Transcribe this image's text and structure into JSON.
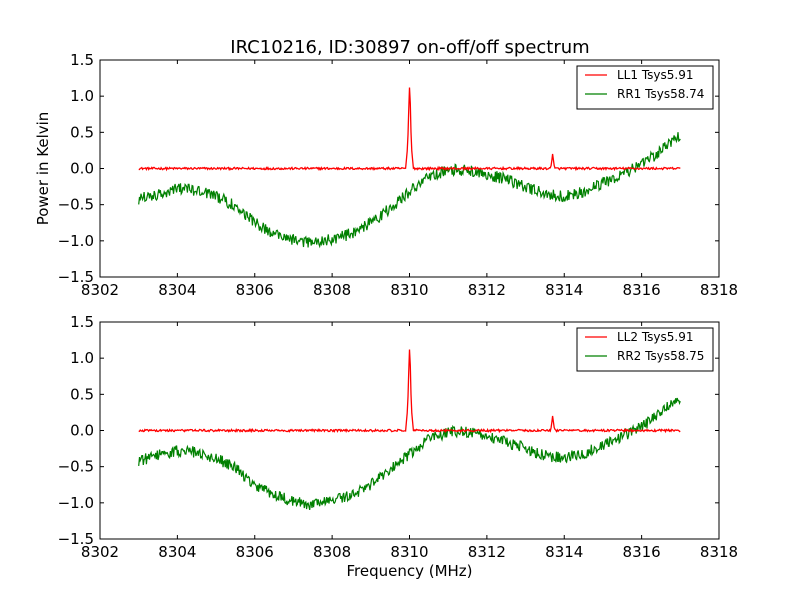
{
  "figure": {
    "title": "IRC10216, ID:30897 on-off/off spectrum"
  },
  "colors": {
    "ll": "#ff0000",
    "rr": "#008000",
    "axes": "#000000",
    "background": "#ffffff"
  },
  "chart_data": [
    {
      "type": "line",
      "title": "IRC10216, ID:30897 on-off/off spectrum",
      "xlabel": "",
      "ylabel": "Power in Kelvin",
      "xlim": [
        8302,
        8318
      ],
      "ylim": [
        -1.5,
        1.5
      ],
      "xticks": [
        "8302",
        "8304",
        "8306",
        "8308",
        "8310",
        "8312",
        "8314",
        "8316",
        "8318"
      ],
      "yticks": [
        "−1.5",
        "−1.0",
        "−0.5",
        "0.0",
        "0.5",
        "1.0",
        "1.5"
      ],
      "grid": false,
      "legend": "top-right",
      "series": [
        {
          "name": "LL1 Tsys5.91",
          "color": "#ff0000",
          "x": [
            8303.0,
            8305.0,
            8307.0,
            8309.0,
            8309.9,
            8309.95,
            8310.0,
            8310.02,
            8310.05,
            8310.1,
            8311.0,
            8312.0,
            8313.0,
            8313.65,
            8313.7,
            8313.75,
            8314.0,
            8315.0,
            8316.0,
            8317.0
          ],
          "y": [
            0.0,
            0.0,
            0.0,
            0.0,
            0.0,
            0.3,
            1.12,
            0.9,
            0.3,
            0.0,
            0.0,
            0.0,
            0.0,
            0.0,
            0.2,
            0.0,
            0.0,
            0.0,
            0.0,
            0.0
          ]
        },
        {
          "name": "RR1 Tsys58.74",
          "color": "#008000",
          "x": [
            8303.0,
            8303.5,
            8304.0,
            8304.5,
            8305.0,
            8305.5,
            8306.0,
            8306.5,
            8307.0,
            8307.5,
            8308.0,
            8308.5,
            8309.0,
            8309.5,
            8310.0,
            8310.5,
            8311.0,
            8311.5,
            8312.0,
            8312.5,
            8313.0,
            8313.5,
            8314.0,
            8314.5,
            8315.0,
            8315.5,
            8316.0,
            8316.5,
            8317.0
          ],
          "y": [
            -0.42,
            -0.35,
            -0.28,
            -0.3,
            -0.38,
            -0.52,
            -0.75,
            -0.9,
            -0.98,
            -1.03,
            -0.98,
            -0.9,
            -0.75,
            -0.55,
            -0.32,
            -0.12,
            -0.02,
            -0.02,
            -0.08,
            -0.15,
            -0.25,
            -0.35,
            -0.38,
            -0.32,
            -0.2,
            -0.08,
            0.05,
            0.25,
            0.45
          ]
        }
      ]
    },
    {
      "type": "line",
      "title": "",
      "xlabel": "Frequency (MHz)",
      "ylabel": "",
      "xlim": [
        8302,
        8318
      ],
      "ylim": [
        -1.5,
        1.5
      ],
      "xticks": [
        "8302",
        "8304",
        "8306",
        "8308",
        "8310",
        "8312",
        "8314",
        "8316",
        "8318"
      ],
      "yticks": [
        "−1.5",
        "−1.0",
        "−0.5",
        "0.0",
        "0.5",
        "1.0",
        "1.5"
      ],
      "grid": false,
      "legend": "top-right",
      "series": [
        {
          "name": "LL2 Tsys5.91",
          "color": "#ff0000",
          "x": [
            8303.0,
            8305.0,
            8307.0,
            8309.0,
            8309.9,
            8309.95,
            8310.0,
            8310.02,
            8310.05,
            8310.1,
            8311.0,
            8312.0,
            8313.0,
            8313.65,
            8313.7,
            8313.75,
            8314.0,
            8315.0,
            8316.0,
            8317.0
          ],
          "y": [
            0.0,
            0.0,
            0.0,
            0.0,
            0.0,
            0.3,
            1.12,
            0.9,
            0.3,
            0.0,
            0.0,
            0.0,
            0.0,
            0.0,
            0.2,
            0.0,
            0.0,
            0.0,
            0.0,
            0.0
          ]
        },
        {
          "name": "RR2 Tsys58.75",
          "color": "#008000",
          "x": [
            8303.0,
            8303.5,
            8304.0,
            8304.5,
            8305.0,
            8305.5,
            8306.0,
            8306.5,
            8307.0,
            8307.5,
            8308.0,
            8308.5,
            8309.0,
            8309.5,
            8310.0,
            8310.5,
            8311.0,
            8311.5,
            8312.0,
            8312.5,
            8313.0,
            8313.5,
            8314.0,
            8314.5,
            8315.0,
            8315.5,
            8316.0,
            8316.5,
            8317.0
          ],
          "y": [
            -0.42,
            -0.35,
            -0.28,
            -0.3,
            -0.38,
            -0.52,
            -0.75,
            -0.9,
            -0.98,
            -1.03,
            -0.98,
            -0.9,
            -0.75,
            -0.55,
            -0.32,
            -0.12,
            -0.02,
            -0.02,
            -0.08,
            -0.15,
            -0.25,
            -0.35,
            -0.38,
            -0.32,
            -0.2,
            -0.08,
            0.05,
            0.25,
            0.45
          ]
        }
      ]
    }
  ]
}
